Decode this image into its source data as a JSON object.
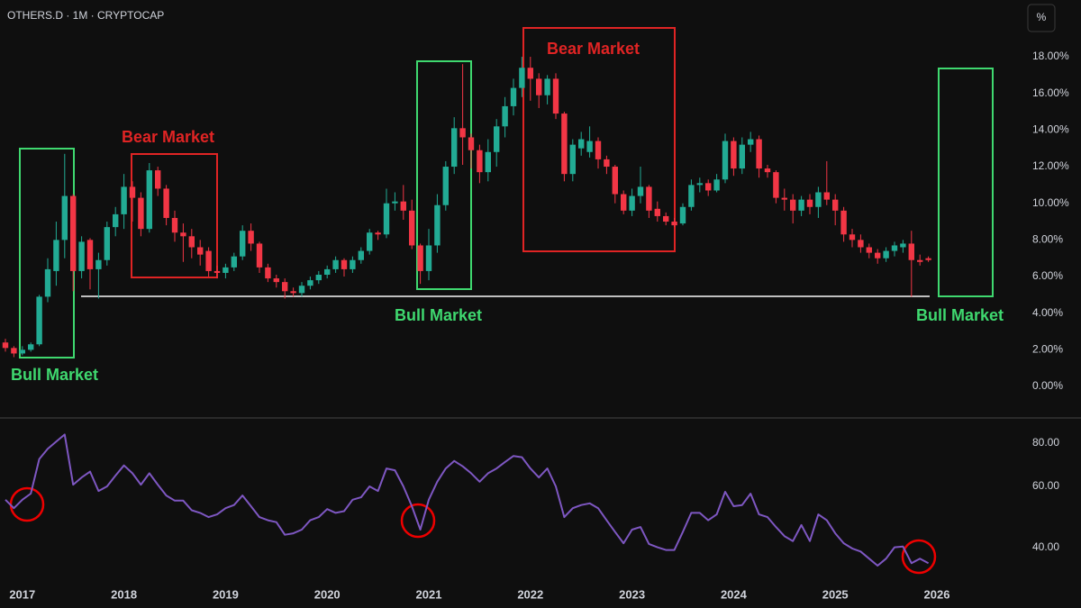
{
  "chart_data": [
    {
      "type": "candlestick",
      "title": "OTHERS.D · 1M · CRYPTOCAP",
      "categories": [
        null,
        null,
        "2017",
        null,
        null,
        null,
        null,
        null,
        null,
        null,
        null,
        null,
        null,
        null,
        "2018",
        null,
        null,
        null,
        null,
        null,
        null,
        null,
        null,
        null,
        null,
        null,
        "2019",
        null,
        null,
        null,
        null,
        null,
        null,
        null,
        null,
        null,
        null,
        null,
        "2020",
        null,
        null,
        null,
        null,
        null,
        null,
        null,
        null,
        null,
        null,
        null,
        "2021",
        null,
        null,
        null,
        null,
        null,
        null,
        null,
        null,
        null,
        null,
        null,
        "2022",
        null,
        null,
        null,
        null,
        null,
        null,
        null,
        null,
        null,
        null,
        null,
        "2023",
        null,
        null,
        null,
        null,
        null,
        null,
        null,
        null,
        null,
        null,
        null,
        "2024",
        null,
        null,
        null,
        null,
        null,
        null,
        null,
        null,
        null,
        null,
        null,
        "2025",
        null,
        null,
        null,
        null,
        null,
        null,
        null,
        null,
        null,
        null,
        null,
        "2026"
      ],
      "open": [
        2.4,
        2.1,
        1.8,
        2.0,
        2.3,
        4.9,
        6.3,
        8.0,
        10.4,
        6.3,
        8.0,
        6.4,
        6.9,
        8.7,
        9.4,
        10.9,
        10.3,
        8.6,
        11.8,
        10.8,
        9.2,
        8.4,
        8.2,
        7.6,
        7.4,
        6.3,
        6.2,
        6.5,
        7.1,
        8.5,
        7.8,
        6.5,
        5.9,
        5.7,
        5.2,
        5.1,
        5.5,
        5.8,
        6.1,
        6.4,
        6.9,
        6.4,
        6.9,
        7.4,
        8.4,
        8.3,
        10.0,
        10.1,
        9.6,
        7.7,
        6.3,
        7.7,
        9.9,
        12.0,
        14.1,
        13.6,
        12.9,
        11.7,
        12.8,
        14.2,
        15.3,
        16.3,
        17.4,
        16.8,
        15.9,
        16.8,
        14.9,
        11.6,
        13.0,
        12.8,
        13.4,
        12.4,
        12.0,
        10.5,
        9.6,
        10.4,
        10.9,
        9.7,
        9.3,
        9.0,
        8.9,
        9.8,
        11.0,
        11.1,
        10.7,
        11.3,
        13.4,
        11.9,
        13.2,
        13.5,
        11.9,
        11.7,
        10.3,
        10.2,
        9.6,
        10.2,
        9.8,
        10.6,
        10.2,
        9.6,
        8.3,
        8.0,
        7.6,
        7.3,
        7.0,
        7.4,
        7.6,
        7.8,
        6.9,
        7.0,
        null
      ],
      "high": [
        2.6,
        2.2,
        2.2,
        2.4,
        5.0,
        7.0,
        9.0,
        12.7,
        10.5,
        8.2,
        8.1,
        7.3,
        9.0,
        9.8,
        11.6,
        11.2,
        10.6,
        12.2,
        12.0,
        11.0,
        9.6,
        8.9,
        8.6,
        8.0,
        7.6,
        6.6,
        6.7,
        7.3,
        8.8,
        8.9,
        7.9,
        6.7,
        6.1,
        5.9,
        5.4,
        5.7,
        6.0,
        6.3,
        6.6,
        7.1,
        7.0,
        7.1,
        7.6,
        8.6,
        8.5,
        10.8,
        10.6,
        11.0,
        10.2,
        7.8,
        8.6,
        10.5,
        12.3,
        14.7,
        17.6,
        13.8,
        13.2,
        13.5,
        14.6,
        15.8,
        16.8,
        18.0,
        18.0,
        17.1,
        17.0,
        17.1,
        15.0,
        13.5,
        13.9,
        14.2,
        13.6,
        12.6,
        12.1,
        10.7,
        10.8,
        12.0,
        11.0,
        10.1,
        9.5,
        9.2,
        10.0,
        11.3,
        11.4,
        11.3,
        11.6,
        13.8,
        13.6,
        13.6,
        13.9,
        13.7,
        12.1,
        11.8,
        10.8,
        10.5,
        10.4,
        10.5,
        10.9,
        12.3,
        10.5,
        9.8,
        8.6,
        8.3,
        7.8,
        7.5,
        7.6,
        7.9,
        8.0,
        8.5,
        7.2,
        7.1,
        null
      ],
      "low": [
        1.9,
        1.6,
        1.7,
        1.9,
        2.2,
        4.6,
        5.5,
        7.0,
        5.2,
        5.9,
        5.3,
        4.8,
        6.6,
        8.2,
        8.6,
        9.0,
        8.2,
        8.4,
        10.4,
        8.8,
        7.9,
        6.8,
        7.0,
        6.6,
        6.0,
        5.9,
        5.9,
        6.3,
        6.9,
        7.4,
        6.2,
        5.7,
        5.4,
        4.8,
        4.9,
        4.9,
        5.3,
        5.6,
        5.9,
        6.2,
        6.0,
        6.2,
        6.7,
        7.2,
        8.0,
        8.1,
        9.6,
        9.1,
        7.5,
        5.6,
        5.8,
        7.3,
        9.6,
        11.6,
        12.1,
        11.9,
        11.1,
        11.2,
        12.0,
        13.6,
        14.8,
        15.8,
        15.6,
        15.2,
        15.4,
        14.6,
        11.2,
        11.2,
        12.6,
        12.5,
        11.9,
        11.6,
        10.0,
        9.4,
        9.3,
        10.0,
        9.2,
        9.0,
        8.8,
        8.7,
        8.8,
        9.6,
        10.6,
        10.4,
        10.6,
        11.1,
        11.5,
        11.6,
        12.8,
        11.4,
        11.4,
        10.0,
        9.6,
        8.9,
        9.3,
        9.4,
        9.2,
        9.9,
        8.8,
        7.9,
        7.6,
        7.3,
        7.0,
        6.7,
        6.8,
        7.1,
        7.3,
        4.9,
        6.6,
        6.8,
        null
      ],
      "close": [
        2.1,
        1.8,
        2.0,
        2.3,
        4.9,
        6.4,
        8.0,
        10.4,
        6.3,
        7.9,
        6.4,
        6.9,
        8.7,
        9.4,
        10.9,
        10.3,
        8.6,
        11.8,
        10.8,
        9.2,
        8.4,
        8.2,
        7.6,
        7.2,
        6.3,
        6.2,
        6.5,
        7.1,
        8.5,
        7.8,
        6.5,
        5.9,
        5.7,
        5.2,
        5.1,
        5.5,
        5.8,
        6.1,
        6.4,
        6.9,
        6.4,
        6.9,
        7.4,
        8.4,
        8.3,
        10.0,
        10.1,
        9.6,
        7.7,
        6.3,
        7.7,
        9.9,
        12.0,
        14.1,
        13.6,
        12.9,
        11.7,
        12.8,
        14.2,
        15.3,
        16.3,
        17.4,
        16.8,
        15.9,
        16.8,
        14.9,
        11.6,
        13.2,
        13.5,
        13.4,
        12.4,
        12.0,
        10.5,
        9.6,
        10.4,
        10.9,
        9.6,
        9.3,
        9.0,
        8.8,
        9.8,
        11.0,
        11.1,
        10.7,
        11.3,
        13.4,
        11.9,
        13.2,
        13.5,
        11.9,
        11.7,
        10.3,
        10.2,
        9.6,
        10.2,
        9.8,
        10.6,
        10.2,
        9.6,
        8.3,
        8.0,
        7.6,
        7.3,
        7.0,
        7.4,
        7.7,
        7.8,
        6.9,
        6.8,
        6.9,
        null
      ],
      "up_color": "#22ab94",
      "down_color": "#f23645",
      "ylim": [
        -1.67,
        21.1
      ],
      "yticks": [
        {
          "value": 0,
          "label": "0.00%"
        },
        {
          "value": 2,
          "label": "2.00%"
        },
        {
          "value": 4,
          "label": "4.00%"
        },
        {
          "value": 6,
          "label": "6.00%"
        },
        {
          "value": 8,
          "label": "8.00%"
        },
        {
          "value": 10,
          "label": "10.00%"
        },
        {
          "value": 12,
          "label": "12.00%"
        },
        {
          "value": 14,
          "label": "14.00%"
        },
        {
          "value": 16,
          "label": "16.00%"
        },
        {
          "value": 18,
          "label": "18.00%"
        }
      ],
      "annotations": [
        "Bull Market",
        "Bear Market",
        "Bull Market",
        "Bear Market",
        "Bull Market"
      ]
    },
    {
      "type": "line",
      "color": "#7e57c2",
      "log_scale": true,
      "values": [
        54.9,
        51.9,
        54.9,
        57.2,
        72.0,
        77.1,
        80.9,
        84.8,
        60.7,
        63.7,
        66.2,
        58.2,
        60.0,
        64.5,
        69.0,
        65.5,
        60.7,
        65.5,
        60.7,
        56.5,
        54.6,
        54.6,
        51.2,
        50.3,
        48.9,
        49.8,
        51.9,
        53.0,
        56.5,
        52.6,
        48.9,
        47.9,
        47.3,
        43.5,
        43.9,
        45.0,
        47.9,
        48.9,
        51.6,
        50.3,
        50.9,
        54.9,
        55.8,
        60.0,
        58.2,
        67.6,
        66.8,
        60.0,
        52.6,
        45.0,
        54.9,
        61.9,
        67.6,
        71.1,
        68.6,
        65.5,
        61.9,
        65.5,
        67.6,
        70.6,
        73.5,
        72.9,
        67.6,
        63.7,
        67.6,
        60.0,
        48.9,
        51.9,
        53.0,
        53.6,
        51.9,
        47.9,
        44.3,
        41.1,
        45.0,
        45.8,
        40.9,
        40.0,
        39.3,
        39.3,
        44.3,
        50.3,
        50.3,
        47.9,
        49.8,
        57.9,
        52.6,
        53.0,
        57.2,
        49.8,
        48.9,
        45.8,
        43.1,
        41.7,
        46.4,
        41.7,
        49.8,
        47.9,
        43.9,
        41.1,
        39.7,
        38.9,
        37.1,
        35.4,
        37.1,
        40.0,
        40.2,
        36.0,
        37.1,
        36.0,
        null
      ],
      "ylim": [
        31.4,
        94.1
      ],
      "yticks": [
        {
          "value": 40,
          "label": "40.00"
        },
        {
          "value": 60,
          "label": "60.00"
        },
        {
          "value": 80,
          "label": "80.00"
        }
      ]
    }
  ],
  "unit_button": "%"
}
